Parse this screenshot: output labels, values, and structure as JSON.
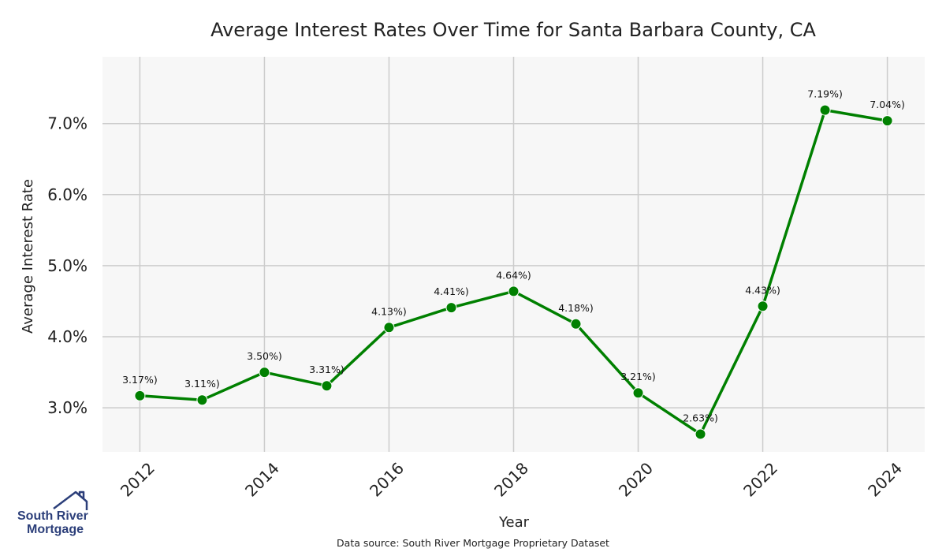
{
  "chart_data": {
    "type": "line",
    "title": "Average Interest Rates Over Time for Santa Barbara County, CA",
    "xlabel": "Year",
    "ylabel": "Average Interest Rate",
    "x": [
      2012,
      2013,
      2014,
      2015,
      2016,
      2017,
      2018,
      2019,
      2020,
      2021,
      2022,
      2023,
      2024
    ],
    "values": [
      3.17,
      3.11,
      3.5,
      3.31,
      4.13,
      4.41,
      4.64,
      4.18,
      3.21,
      2.63,
      4.43,
      7.19,
      7.04
    ],
    "data_labels": [
      "3.17%)",
      "3.11%)",
      "3.50%)",
      "3.31%)",
      "4.13%)",
      "4.41%)",
      "4.64%)",
      "4.18%)",
      "3.21%)",
      "2.63%)",
      "4.43%)",
      "7.19%)",
      "7.04%)"
    ],
    "xticks": [
      "2012",
      "2014",
      "2016",
      "2018",
      "2020",
      "2022",
      "2024"
    ],
    "yticks": [
      3.0,
      4.0,
      5.0,
      6.0,
      7.0
    ],
    "ytick_labels": [
      "3.0%",
      "4.0%",
      "5.0%",
      "6.0%",
      "7.0%"
    ],
    "xlim": [
      2011.4,
      2024.6
    ],
    "ylim": [
      2.38,
      7.94
    ],
    "grid": true,
    "line_color": "#008000",
    "plot_background": "#f7f7f7",
    "grid_color": "#cccccc"
  },
  "footer": {
    "source": "Data source: South River Mortgage Proprietary Dataset"
  },
  "logo": {
    "line1": "South River",
    "line2": "Mortgage",
    "color": "#2c3f7a"
  }
}
